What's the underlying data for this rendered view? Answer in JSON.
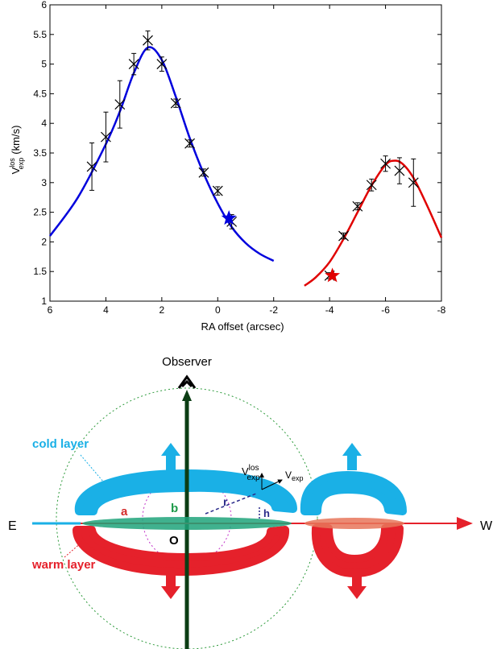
{
  "chart_data": {
    "type": "scatter",
    "title": "",
    "xlabel": "RA offset (arcsec)",
    "ylabel_main": "V",
    "ylabel_sup": "los",
    "ylabel_sub": "exp",
    "ylabel_unit": "(km/s)",
    "xlim": [
      6,
      -8
    ],
    "ylim": [
      1,
      6
    ],
    "x_ticks": [
      6,
      4,
      2,
      0,
      -2,
      -4,
      -6,
      -8
    ],
    "x_tick_labels": [
      "6",
      "4",
      "2",
      "0",
      "-2",
      "-4",
      "-6",
      "-8"
    ],
    "y_ticks": [
      1,
      1.5,
      2,
      2.5,
      3,
      3.5,
      4,
      4.5,
      5,
      5.5,
      6
    ],
    "y_tick_labels": [
      "1",
      "1.5",
      "2",
      "2.5",
      "3",
      "3.5",
      "4",
      "4.5",
      "5",
      "5.5",
      "6"
    ],
    "grid": false,
    "series": [
      {
        "color": "#0000dd",
        "marker": "x",
        "points": [
          {
            "x": 4.5,
            "y": 3.27,
            "err": 0.4
          },
          {
            "x": 4.0,
            "y": 3.77,
            "err": 0.42
          },
          {
            "x": 3.5,
            "y": 4.32,
            "err": 0.4
          },
          {
            "x": 3.0,
            "y": 5.0,
            "err": 0.18
          },
          {
            "x": 2.5,
            "y": 5.4,
            "err": 0.16
          },
          {
            "x": 2.0,
            "y": 5.0,
            "err": 0.12
          },
          {
            "x": 1.5,
            "y": 4.34,
            "err": 0.07
          },
          {
            "x": 1.0,
            "y": 3.66,
            "err": 0.06
          },
          {
            "x": 0.5,
            "y": 3.17,
            "err": 0.06
          },
          {
            "x": 0.0,
            "y": 2.86,
            "err": 0.07
          },
          {
            "x": -0.5,
            "y": 2.34,
            "err": 0.12
          }
        ],
        "star": {
          "x": -0.4,
          "y": 2.4
        },
        "fit": [
          [
            6,
            2.1
          ],
          [
            5,
            2.75
          ],
          [
            4,
            3.65
          ],
          [
            3.5,
            4.2
          ],
          [
            3,
            4.85
          ],
          [
            2.5,
            5.28
          ],
          [
            2,
            5.07
          ],
          [
            1.5,
            4.45
          ],
          [
            1,
            3.75
          ],
          [
            0.5,
            3.15
          ],
          [
            0,
            2.65
          ],
          [
            -0.5,
            2.25
          ],
          [
            -1,
            1.98
          ],
          [
            -1.5,
            1.8
          ],
          [
            -2,
            1.68
          ]
        ]
      },
      {
        "color": "#e00000",
        "marker": "x",
        "points": [
          {
            "x": -4.0,
            "y": 1.43,
            "err": 0.05
          },
          {
            "x": -4.5,
            "y": 2.1,
            "err": 0.05
          },
          {
            "x": -5.0,
            "y": 2.6,
            "err": 0.06
          },
          {
            "x": -5.5,
            "y": 2.96,
            "err": 0.1
          },
          {
            "x": -6.0,
            "y": 3.32,
            "err": 0.13
          },
          {
            "x": -6.5,
            "y": 3.2,
            "err": 0.22
          },
          {
            "x": -7.0,
            "y": 3.0,
            "err": 0.4
          }
        ],
        "star": {
          "x": -4.1,
          "y": 1.43
        },
        "fit": [
          [
            -3.1,
            1.26
          ],
          [
            -3.5,
            1.4
          ],
          [
            -4,
            1.66
          ],
          [
            -4.5,
            2.05
          ],
          [
            -5,
            2.5
          ],
          [
            -5.5,
            2.95
          ],
          [
            -6,
            3.3
          ],
          [
            -6.3,
            3.37
          ],
          [
            -6.6,
            3.32
          ],
          [
            -7,
            3.08
          ],
          [
            -7.5,
            2.6
          ],
          [
            -8,
            2.07
          ]
        ]
      }
    ]
  },
  "diagram": {
    "observer_label": "Observer",
    "east_label": "E",
    "west_label": "W",
    "cold_layer_label": "cold layer",
    "warm_layer_label": "warm layer",
    "label_a": "a",
    "label_b": "b",
    "label_r": "r",
    "label_h": "h",
    "label_o": "O",
    "vlos_main": "V",
    "vlos_sup": "los",
    "vlos_sub": "exp",
    "vexp_main": "V",
    "vexp_sub": "exp",
    "colors": {
      "cold": "#1ab0e6",
      "warm": "#e5212b",
      "axis": "#0b3d14",
      "disk": "#1fa37a",
      "label_a": "#d42a2a",
      "label_b": "#1e9a4a",
      "label_r": "#2a2a8a"
    }
  }
}
